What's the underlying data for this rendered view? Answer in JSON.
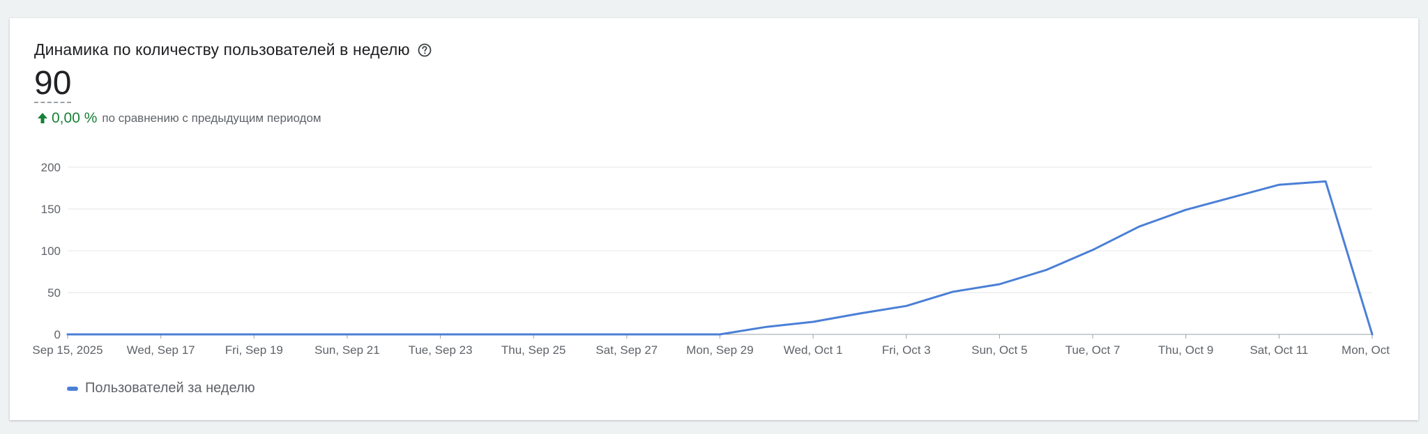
{
  "card": {
    "title": "Динамика по количеству пользователей в неделю",
    "help_icon": "help-circle-icon",
    "value": "90",
    "delta_value": "0,00 %",
    "delta_direction": "up",
    "delta_note": "по сравнению с предыдущим периодом",
    "colors": {
      "accent": "#4a7fd6",
      "positive": "#188038",
      "grid": "#e6e6e6",
      "axis_text": "#5f6368"
    }
  },
  "chart_data": {
    "type": "line",
    "title": "",
    "xlabel": "",
    "ylabel": "",
    "ylim": [
      0,
      200
    ],
    "y_ticks": [
      0,
      50,
      100,
      150,
      200
    ],
    "x_ticks": [
      "Sep 15, 2025",
      "Wed, Sep 17",
      "Fri, Sep 19",
      "Sun, Sep 21",
      "Tue, Sep 23",
      "Thu, Sep 25",
      "Sat, Sep 27",
      "Mon, Sep 29",
      "Wed, Oct 1",
      "Fri, Oct 3",
      "Sun, Oct 5",
      "Tue, Oct 7",
      "Thu, Oct 9",
      "Sat, Oct 11",
      "Mon, Oct"
    ],
    "grid": true,
    "legend_position": "bottom-left",
    "series": [
      {
        "name": "Пользователей за неделю",
        "color": "#4a7fd6",
        "x": [
          "Sep 15",
          "Sep 16",
          "Sep 17",
          "Sep 18",
          "Sep 19",
          "Sep 20",
          "Sep 21",
          "Sep 22",
          "Sep 23",
          "Sep 24",
          "Sep 25",
          "Sep 26",
          "Sep 27",
          "Sep 28",
          "Sep 29",
          "Sep 30",
          "Oct 1",
          "Oct 2",
          "Oct 3",
          "Oct 4",
          "Oct 5",
          "Oct 6",
          "Oct 7",
          "Oct 8",
          "Oct 9",
          "Oct 10",
          "Oct 11",
          "Oct 12",
          "Oct 13"
        ],
        "values": [
          0,
          0,
          0,
          0,
          0,
          0,
          0,
          0,
          0,
          0,
          0,
          0,
          0,
          0,
          0,
          9,
          15,
          25,
          34,
          51,
          60,
          77,
          101,
          129,
          149,
          164,
          179,
          183,
          0
        ]
      }
    ]
  }
}
